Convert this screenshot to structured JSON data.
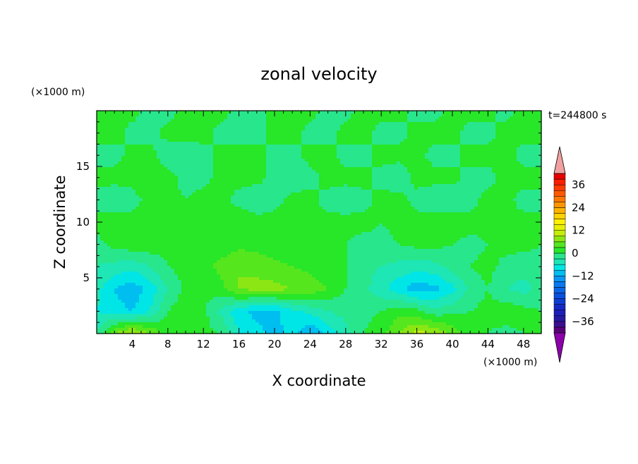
{
  "chart_data": {
    "type": "heatmap",
    "title": "zonal velocity",
    "xlabel": "X coordinate",
    "ylabel": "Z coordinate",
    "x_unit": "(×1000 m)",
    "y_unit": "(×1000 m)",
    "time_label": "t=244800 s",
    "xlim": [
      0,
      50
    ],
    "ylim": [
      0,
      20
    ],
    "x_ticks": [
      4,
      8,
      12,
      16,
      20,
      24,
      28,
      32,
      36,
      40,
      44,
      48
    ],
    "y_ticks": [
      5,
      10,
      15
    ],
    "colorbar": {
      "levels": [
        -42,
        -39,
        -36,
        -33,
        -30,
        -27,
        -24,
        -21,
        -18,
        -15,
        -12,
        -9,
        -6,
        -3,
        0,
        3,
        6,
        9,
        12,
        15,
        18,
        21,
        24,
        27,
        30,
        33,
        36,
        39,
        42
      ],
      "colors": [
        "#5a007a",
        "#3c0f8f",
        "#2619a3",
        "#1e1eb8",
        "#1428c8",
        "#0f3cd2",
        "#0a50dc",
        "#0a64e6",
        "#0a78f0",
        "#0a96f5",
        "#00bef0",
        "#00e6e6",
        "#1ee6b4",
        "#28e68c",
        "#28e628",
        "#55e61e",
        "#8ce614",
        "#c3ed0a",
        "#e6f000",
        "#fff000",
        "#ffd200",
        "#ffb400",
        "#ff9600",
        "#ff7800",
        "#ff5a00",
        "#ff3c00",
        "#ff1e00",
        "#e60000"
      ],
      "under_color": "#8c00aa",
      "over_color": "#f0a0a0",
      "tick_labels": [
        36,
        24,
        12,
        0,
        -12,
        -24,
        -36
      ]
    },
    "grid": {
      "nx": 26,
      "nz": 11,
      "x": [
        0,
        2,
        4,
        6,
        8,
        10,
        12,
        14,
        16,
        18,
        20,
        22,
        24,
        26,
        28,
        30,
        32,
        34,
        36,
        38,
        40,
        42,
        44,
        46,
        48,
        50
      ],
      "z": [
        0,
        2,
        4,
        6,
        8,
        10,
        12,
        14,
        16,
        18,
        20
      ],
      "values": [
        [
          -3,
          6,
          10,
          6,
          2,
          1,
          1,
          0,
          -6,
          -8,
          -10,
          -8,
          -12,
          -8,
          -4,
          0,
          2,
          6,
          10,
          9,
          5,
          1,
          0,
          -1,
          0,
          0
        ],
        [
          -6,
          -8,
          -9,
          -6,
          0,
          2,
          1,
          -4,
          -8,
          -10,
          -10,
          -7,
          -5,
          -3,
          -2,
          -1,
          0,
          2,
          1,
          -2,
          -1,
          0,
          1,
          2,
          1,
          0
        ],
        [
          -5,
          -9,
          -11,
          -8,
          -3,
          1,
          0,
          2,
          6,
          7,
          7,
          6,
          5,
          3,
          0,
          -2,
          -5,
          -8,
          -11,
          -10,
          -7,
          -2,
          0,
          -3,
          -4,
          -2
        ],
        [
          -3,
          -4,
          -5,
          -3,
          0,
          1,
          2,
          4,
          6,
          5,
          4,
          3,
          2,
          1,
          0,
          -2,
          -3,
          -4,
          -5,
          -4,
          -2,
          0,
          1,
          -1,
          -2,
          -1
        ],
        [
          -1,
          1,
          2,
          2,
          1,
          2,
          2,
          1,
          2,
          2,
          1,
          1,
          1,
          0,
          0,
          -1,
          -1,
          0,
          1,
          1,
          0,
          -1,
          0,
          1,
          1,
          0
        ],
        [
          1,
          2,
          1,
          2,
          1,
          1,
          1,
          2,
          2,
          1,
          1,
          1,
          0,
          1,
          1,
          1,
          0,
          1,
          1,
          2,
          2,
          1,
          1,
          0,
          1,
          1
        ],
        [
          -1,
          -2,
          -1,
          1,
          1,
          0,
          1,
          1,
          -1,
          -2,
          -1,
          1,
          1,
          -1,
          -2,
          -1,
          1,
          1,
          -1,
          -2,
          -2,
          -1,
          1,
          1,
          -1,
          -1
        ],
        [
          1,
          1,
          1,
          2,
          1,
          -1,
          -1,
          1,
          1,
          1,
          -1,
          -2,
          -1,
          1,
          1,
          1,
          -1,
          -2,
          1,
          1,
          1,
          -1,
          -1,
          1,
          1,
          1
        ],
        [
          -1,
          -1,
          1,
          1,
          -2,
          -2,
          -1,
          1,
          1,
          1,
          -1,
          -1,
          1,
          1,
          -1,
          -1,
          1,
          1,
          1,
          -1,
          -1,
          1,
          1,
          1,
          -1,
          -1
        ],
        [
          1,
          1,
          -1,
          -1,
          1,
          1,
          1,
          -1,
          -1,
          -1,
          1,
          1,
          -1,
          -1,
          1,
          1,
          -1,
          -1,
          1,
          1,
          1,
          -1,
          -1,
          1,
          1,
          1
        ],
        [
          1,
          1,
          1,
          -1,
          -1,
          1,
          1,
          1,
          -1,
          -1,
          1,
          1,
          1,
          -1,
          -1,
          1,
          1,
          1,
          -1,
          -1,
          1,
          1,
          1,
          -1,
          1,
          1
        ]
      ]
    }
  }
}
